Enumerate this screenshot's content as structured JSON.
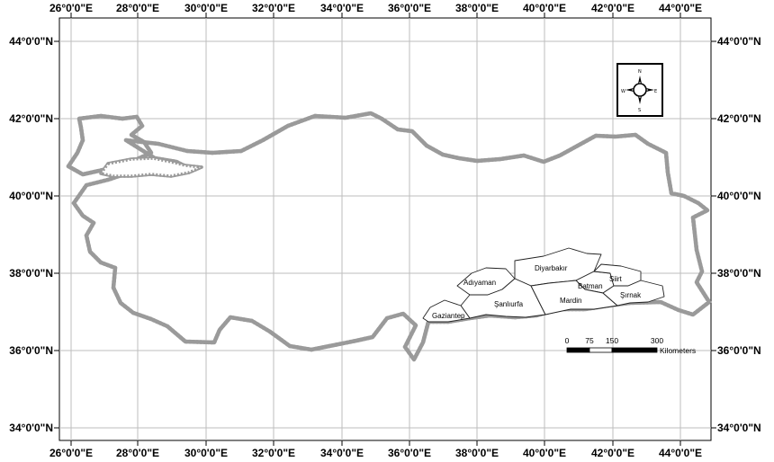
{
  "map": {
    "lon_labels": [
      "26°0'0\"E",
      "28°0'0\"E",
      "30°0'0\"E",
      "32°0'0\"E",
      "34°0'0\"E",
      "36°0'0\"E",
      "38°0'0\"E",
      "40°0'0\"E",
      "42°0'0\"E",
      "44°0'0\"E"
    ],
    "lat_labels": [
      "44°0'0\"N",
      "42°0'0\"N",
      "40°0'0\"N",
      "38°0'0\"N",
      "36°0'0\"N",
      "34°0'0\"N"
    ],
    "provinces": [
      {
        "id": "adiyaman",
        "label": "Adıyaman"
      },
      {
        "id": "diyarbakir",
        "label": "Diyarbakır"
      },
      {
        "id": "siirt",
        "label": "Siirt"
      },
      {
        "id": "batman",
        "label": "Batman"
      },
      {
        "id": "sanliurfa",
        "label": "Şanlıurfa"
      },
      {
        "id": "mardin",
        "label": "Mardin"
      },
      {
        "id": "sirnak",
        "label": "Şırnak"
      },
      {
        "id": "gaziantep",
        "label": "Gaziantep"
      }
    ],
    "scale_bar": {
      "ticks": [
        "0",
        "75",
        "150",
        "300"
      ],
      "unit": "Kilometers"
    },
    "north_arrow": {
      "letters": {
        "n": "N",
        "e": "E",
        "s": "S",
        "w": "W"
      }
    },
    "colors": {
      "frame": "#000000",
      "grid": "#bdbdbd",
      "coastline": "#9a9a9a",
      "land": "#ffffff"
    }
  }
}
